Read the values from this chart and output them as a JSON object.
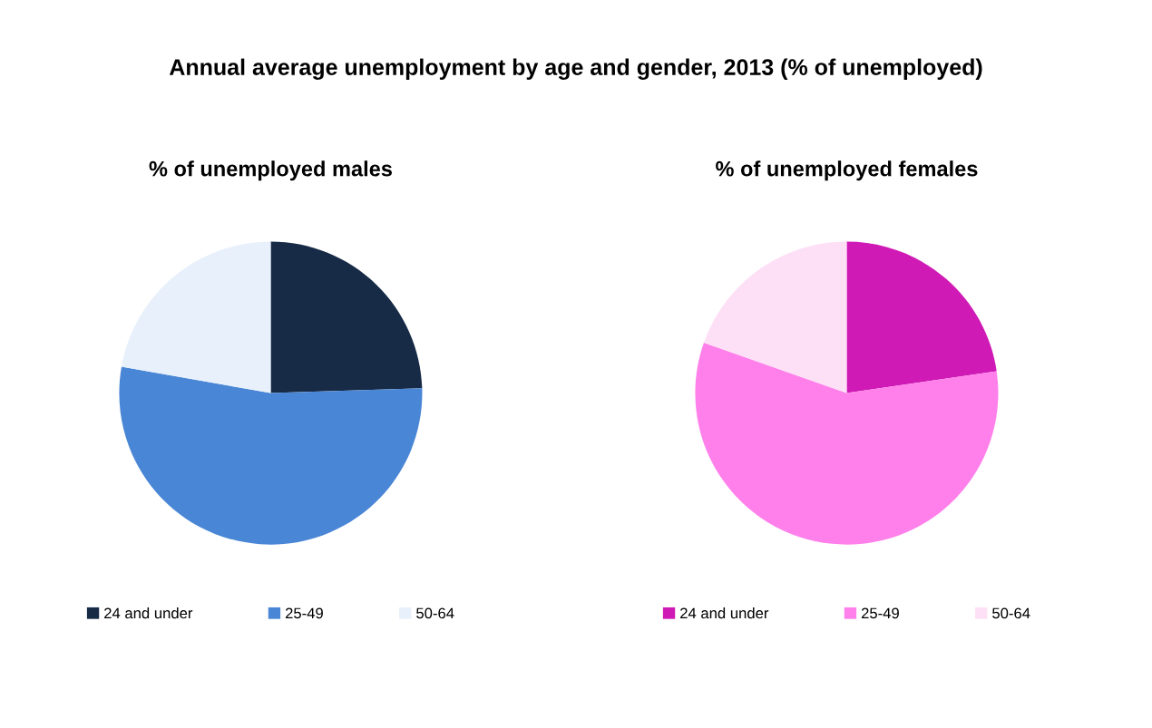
{
  "chart_data": [
    {
      "type": "pie",
      "title": "% of unemployed males",
      "annotations": [
        "Annual average unemployment by age and gender, 2013 (% of unemployed)"
      ],
      "categories": [
        "24 and under",
        "25-49",
        "50-64"
      ],
      "values": [
        24.5,
        53.3,
        22.2
      ],
      "colors": [
        "#172b47",
        "#4a86d6",
        "#e8f0fb"
      ],
      "legend": "bottom"
    },
    {
      "type": "pie",
      "title": "% of unemployed females",
      "categories": [
        "24 and under",
        "25-49",
        "50-64"
      ],
      "values": [
        22.7,
        57.7,
        19.6
      ],
      "colors": [
        "#cf1ab5",
        "#ff80eb",
        "#fde0f6"
      ],
      "legend": "bottom"
    }
  ]
}
